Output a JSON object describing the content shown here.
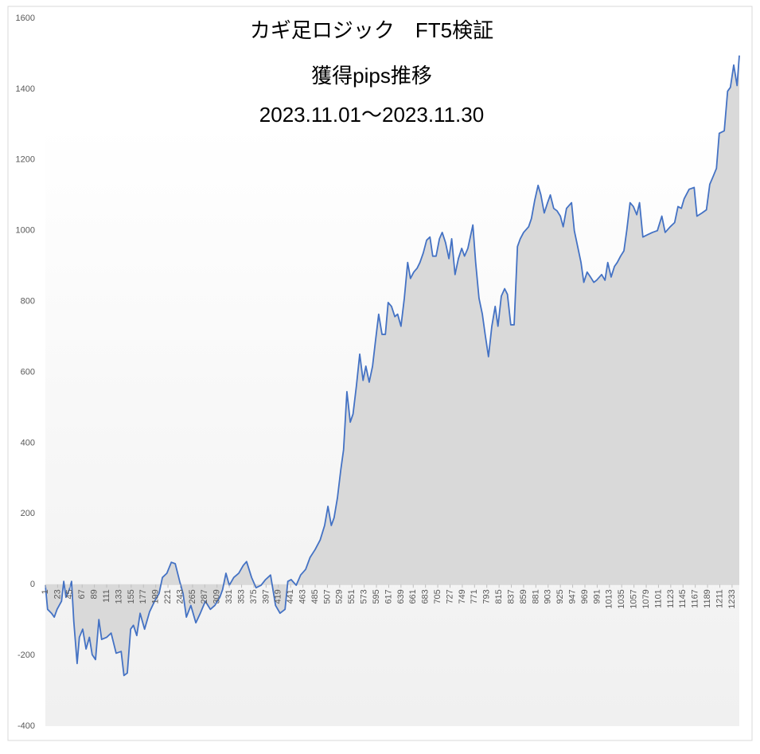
{
  "chart_data": {
    "type": "area",
    "title": "カギ足ロジック　FT5検証",
    "subtitle": "獲得pips推移",
    "date_range": "2023.11.01～2023.11.30",
    "color": "#4472c4",
    "fill": "#d9d9d9",
    "grid": false,
    "xlim": [
      1,
      1246
    ],
    "ylim": [
      -400,
      1600
    ],
    "yticks": [
      -400,
      -200,
      0,
      200,
      400,
      600,
      800,
      1000,
      1200,
      1400,
      1600
    ],
    "xticks": [
      1,
      23,
      45,
      67,
      89,
      111,
      133,
      155,
      177,
      199,
      221,
      243,
      265,
      287,
      309,
      331,
      353,
      375,
      397,
      419,
      441,
      463,
      485,
      507,
      529,
      551,
      573,
      595,
      617,
      639,
      661,
      683,
      705,
      727,
      749,
      771,
      793,
      815,
      837,
      859,
      881,
      903,
      925,
      947,
      969,
      991,
      1013,
      1035,
      1057,
      1079,
      1101,
      1123,
      1145,
      1167,
      1189,
      1211,
      1233
    ],
    "x": [
      1,
      5,
      12,
      17,
      22,
      30,
      34,
      38,
      44,
      48,
      52,
      58,
      62,
      68,
      74,
      80,
      85,
      91,
      97,
      102,
      111,
      119,
      128,
      137,
      142,
      148,
      154,
      159,
      165,
      171,
      179,
      188,
      197,
      205,
      211,
      219,
      227,
      234,
      242,
      248,
      254,
      262,
      271,
      279,
      288,
      297,
      305,
      314,
      319,
      325,
      331,
      339,
      348,
      356,
      362,
      371,
      379,
      388,
      396,
      405,
      414,
      422,
      431,
      436,
      442,
      451,
      459,
      468,
      476,
      485,
      494,
      502,
      508,
      514,
      519,
      525,
      531,
      536,
      542,
      548,
      553,
      559,
      565,
      571,
      576,
      582,
      588,
      593,
      599,
      605,
      611,
      616,
      622,
      628,
      633,
      639,
      645,
      651,
      656,
      662,
      668,
      673,
      679,
      685,
      691,
      696,
      702,
      708,
      713,
      719,
      725,
      730,
      736,
      742,
      748,
      753,
      759,
      768,
      773,
      779,
      785,
      790,
      796,
      802,
      808,
      813,
      819,
      825,
      830,
      836,
      842,
      848,
      853,
      859,
      868,
      873,
      879,
      885,
      890,
      896,
      902,
      907,
      913,
      919,
      925,
      930,
      936,
      945,
      950,
      956,
      962,
      967,
      973,
      979,
      985,
      990,
      999,
      1005,
      1010,
      1016,
      1022,
      1027,
      1033,
      1039,
      1044,
      1050,
      1056,
      1062,
      1067,
      1073,
      1082,
      1090,
      1099,
      1107,
      1113,
      1122,
      1130,
      1136,
      1142,
      1147,
      1156,
      1165,
      1170,
      1179,
      1187,
      1193,
      1199,
      1205,
      1210,
      1219,
      1225,
      1230,
      1236,
      1242,
      1246
    ],
    "values": [
      -2,
      -70,
      -81,
      -92,
      -70,
      -47,
      9,
      -36,
      -14,
      9,
      -104,
      -223,
      -149,
      -126,
      -182,
      -149,
      -198,
      -212,
      -99,
      -155,
      -149,
      -137,
      -194,
      -189,
      -257,
      -250,
      -126,
      -115,
      -144,
      -81,
      -126,
      -77,
      -47,
      -25,
      20,
      32,
      63,
      59,
      9,
      -25,
      -92,
      -59,
      -108,
      -81,
      -47,
      -70,
      -59,
      -36,
      -14,
      32,
      -2,
      20,
      32,
      54,
      65,
      20,
      -9,
      -2,
      14,
      27,
      -59,
      -81,
      -70,
      9,
      14,
      -2,
      27,
      43,
      77,
      99,
      126,
      167,
      221,
      167,
      189,
      245,
      324,
      381,
      545,
      459,
      482,
      561,
      651,
      577,
      617,
      572,
      617,
      685,
      764,
      707,
      707,
      797,
      786,
      757,
      764,
      730,
      809,
      910,
      865,
      883,
      894,
      910,
      937,
      973,
      982,
      928,
      928,
      977,
      995,
      966,
      921,
      977,
      876,
      921,
      950,
      928,
      950,
      1016,
      910,
      809,
      764,
      707,
      644,
      730,
      786,
      730,
      815,
      836,
      820,
      734,
      734,
      955,
      977,
      995,
      1011,
      1034,
      1086,
      1128,
      1101,
      1050,
      1079,
      1101,
      1063,
      1056,
      1041,
      1011,
      1063,
      1079,
      1000,
      955,
      910,
      854,
      883,
      869,
      854,
      860,
      876,
      860,
      910,
      869,
      899,
      910,
      928,
      943,
      1000,
      1079,
      1068,
      1045,
      1079,
      982,
      989,
      995,
      1000,
      1041,
      995,
      1011,
      1023,
      1068,
      1063,
      1090,
      1117,
      1122,
      1041,
      1050,
      1059,
      1131,
      1153,
      1176,
      1275,
      1282,
      1394,
      1405,
      1468,
      1410,
      1495
    ]
  }
}
